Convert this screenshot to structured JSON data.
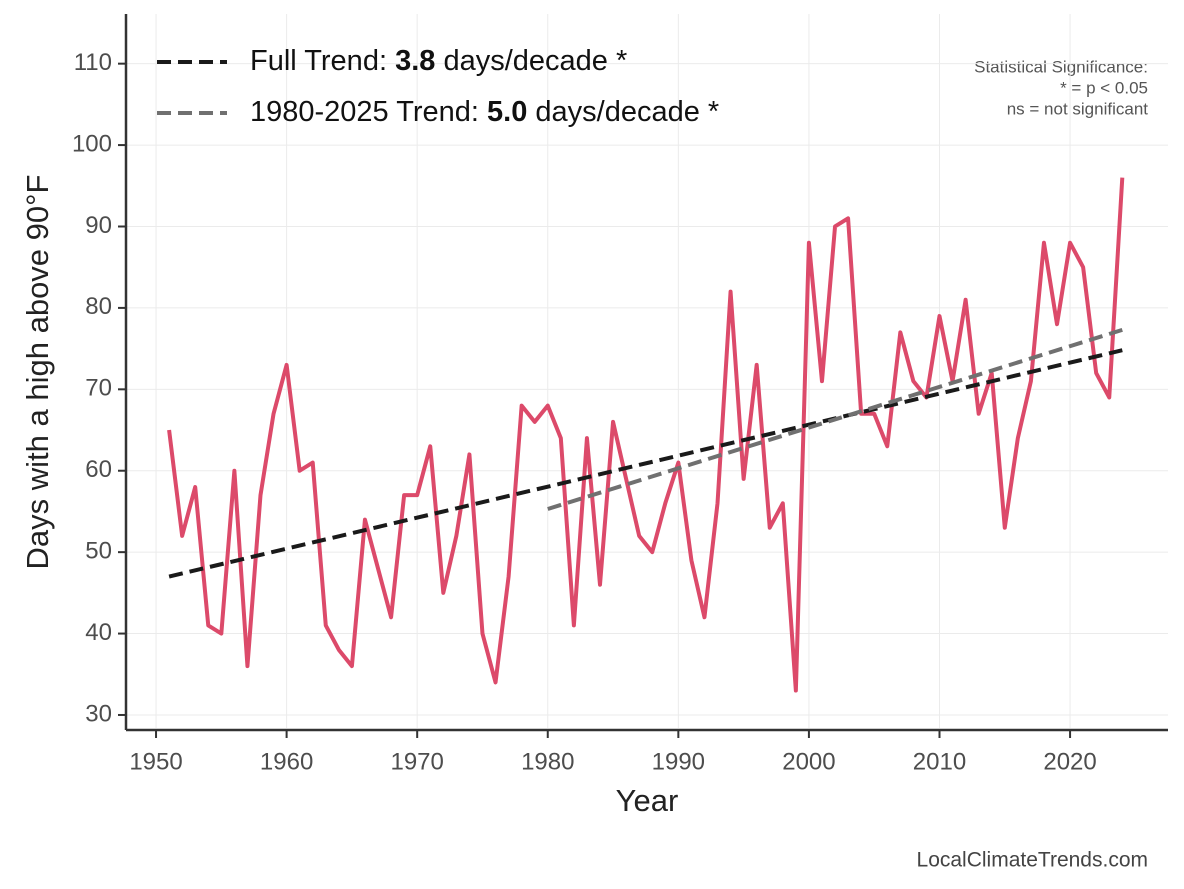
{
  "chart_data": {
    "type": "line",
    "y_label": "Days with a high above 90°F",
    "x_label": "Year",
    "xlim": [
      1947.7,
      2027.5
    ],
    "ylim": [
      28.4,
      116.1
    ],
    "xticks": [
      1950,
      1960,
      1970,
      1980,
      1990,
      2000,
      2010,
      2020
    ],
    "yticks": [
      30,
      40,
      50,
      60,
      70,
      80,
      90,
      100,
      110
    ],
    "grid": true,
    "x": [
      1951,
      1952,
      1953,
      1954,
      1955,
      1956,
      1957,
      1958,
      1959,
      1960,
      1961,
      1962,
      1963,
      1964,
      1965,
      1966,
      1967,
      1968,
      1969,
      1970,
      1971,
      1972,
      1973,
      1974,
      1975,
      1976,
      1977,
      1978,
      1979,
      1980,
      1981,
      1982,
      1983,
      1984,
      1985,
      1986,
      1987,
      1988,
      1989,
      1990,
      1991,
      1992,
      1993,
      1994,
      1995,
      1996,
      1997,
      1998,
      1999,
      2000,
      2001,
      2002,
      2003,
      2004,
      2005,
      2006,
      2007,
      2008,
      2009,
      2010,
      2011,
      2012,
      2013,
      2014,
      2015,
      2016,
      2017,
      2018,
      2019,
      2020,
      2021,
      2022,
      2023,
      2024
    ],
    "series": [
      {
        "color": "#dc4a6a",
        "values": [
          65,
          52,
          58,
          41,
          40,
          60,
          36,
          57,
          67,
          73,
          60,
          61,
          41,
          38,
          36,
          54,
          48,
          42,
          57,
          57,
          63,
          45,
          52,
          62,
          40,
          34,
          47,
          68,
          66,
          68,
          64,
          41,
          64,
          46,
          66,
          59,
          52,
          50,
          56,
          61,
          49,
          42,
          56,
          82,
          59,
          73,
          53,
          56,
          33,
          88,
          71,
          90,
          91,
          67,
          67,
          63,
          77,
          71,
          69,
          79,
          71,
          81,
          67,
          72,
          53,
          64,
          71,
          88,
          78,
          88,
          85,
          72,
          69,
          96
        ]
      },
      {
        "name": "Full Trend: ",
        "rate": 3.8,
        "unit": "days/decade *",
        "color": "#1a1a1a",
        "dashed": true,
        "x": [
          1951,
          2024
        ],
        "values": [
          47,
          74.8
        ]
      },
      {
        "name": "1980-2025 Trend: ",
        "rate": {
          "value": 5,
          "label": "5.0"
        },
        "unit": "days/decade *",
        "color": "#707070",
        "dashed": true,
        "x": [
          1980,
          2024
        ],
        "values": [
          55.3,
          77.3
        ]
      }
    ],
    "legend_position": "upper left",
    "annotation": [
      "Statistical Significance:",
      "* = p < 0.05",
      "ns = not significant"
    ],
    "source": "LocalClimateTrends.com"
  }
}
